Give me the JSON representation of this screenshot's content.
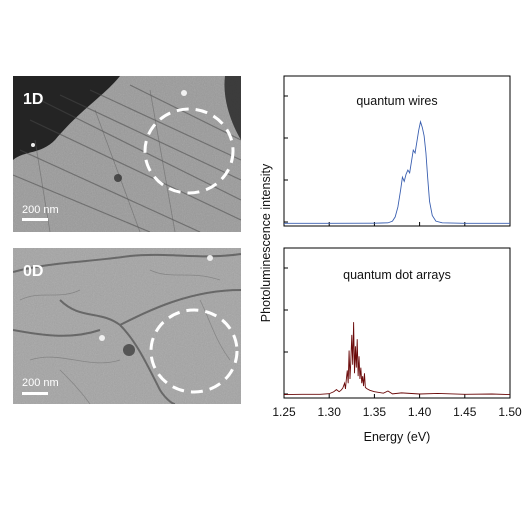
{
  "micrographs": [
    {
      "label": "1D",
      "scale_bar": "200 nm"
    },
    {
      "label": "0D",
      "scale_bar": "200 nm"
    }
  ],
  "colors": {
    "top_series": "#3a5fb0",
    "bottom_series": "#6b0a0a",
    "circle": "#ffffff"
  },
  "chart_data": [
    {
      "type": "line",
      "panel_label": "quantum wires",
      "xlim": [
        1.25,
        1.5
      ],
      "ylim": [
        0,
        1
      ],
      "series": [
        {
          "color": "#3a5fb0",
          "x": [
            1.25,
            1.3,
            1.35,
            1.365,
            1.37,
            1.373,
            1.376,
            1.379,
            1.381,
            1.383,
            1.385,
            1.387,
            1.389,
            1.391,
            1.393,
            1.395,
            1.397,
            1.399,
            1.401,
            1.403,
            1.405,
            1.407,
            1.409,
            1.411,
            1.414,
            1.418,
            1.425,
            1.45,
            1.5
          ],
          "y": [
            0.005,
            0.005,
            0.006,
            0.008,
            0.02,
            0.05,
            0.12,
            0.24,
            0.33,
            0.3,
            0.35,
            0.38,
            0.36,
            0.44,
            0.52,
            0.5,
            0.58,
            0.66,
            0.72,
            0.68,
            0.62,
            0.5,
            0.32,
            0.16,
            0.06,
            0.02,
            0.008,
            0.005,
            0.005
          ]
        }
      ]
    },
    {
      "type": "line",
      "panel_label": "quantum dot arrays",
      "xlim": [
        1.25,
        1.5
      ],
      "ylim": [
        0,
        1
      ],
      "xlabel": "Energy (eV)",
      "x_ticks": [
        "1.25",
        "1.30",
        "1.35",
        "1.40",
        "1.45",
        "1.50"
      ],
      "series": [
        {
          "color": "#6b0a0a",
          "x": [
            1.25,
            1.27,
            1.29,
            1.3,
            1.305,
            1.308,
            1.311,
            1.313,
            1.315,
            1.317,
            1.318,
            1.319,
            1.32,
            1.321,
            1.322,
            1.323,
            1.324,
            1.325,
            1.326,
            1.327,
            1.328,
            1.329,
            1.33,
            1.331,
            1.332,
            1.333,
            1.334,
            1.335,
            1.336,
            1.337,
            1.338,
            1.339,
            1.34,
            1.342,
            1.345,
            1.35,
            1.36,
            1.365,
            1.37,
            1.38,
            1.4,
            1.42,
            1.45,
            1.48,
            1.5
          ],
          "y": [
            0.01,
            0.012,
            0.012,
            0.016,
            0.03,
            0.045,
            0.03,
            0.04,
            0.055,
            0.09,
            0.05,
            0.12,
            0.18,
            0.09,
            0.32,
            0.12,
            0.26,
            0.43,
            0.22,
            0.52,
            0.16,
            0.35,
            0.2,
            0.4,
            0.14,
            0.28,
            0.12,
            0.2,
            0.09,
            0.14,
            0.07,
            0.16,
            0.06,
            0.05,
            0.04,
            0.03,
            0.02,
            0.035,
            0.015,
            0.022,
            0.014,
            0.018,
            0.012,
            0.014,
            0.01
          ]
        }
      ]
    }
  ],
  "ylabel": "Photoluminescence intensity"
}
